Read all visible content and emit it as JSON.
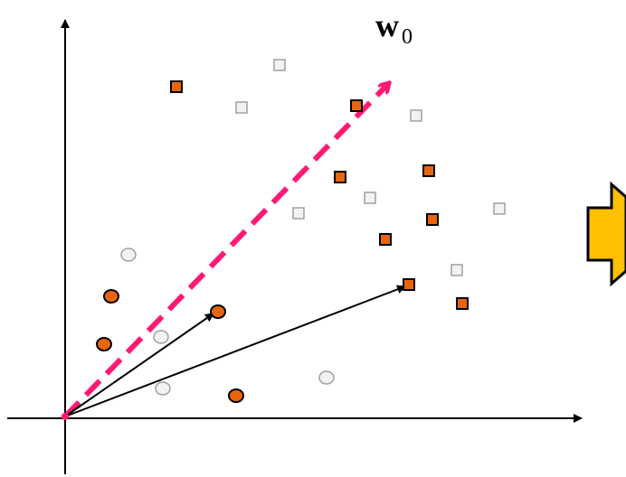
{
  "vector_label": {
    "main": "w",
    "subscript": "0"
  },
  "colors": {
    "axis": "#000000",
    "dashed_vector": "#ff1a75",
    "orange_fill": "#e8650c",
    "orange_stroke": "#000000",
    "gray_fill": "#f2f2f2",
    "gray_stroke": "#a0a0a0",
    "arrow_fill": "#ffc000",
    "arrow_stroke": "#000000",
    "solid_vector": "#000000"
  },
  "icons": {
    "right_arrow": "right-block-arrow-icon"
  }
}
